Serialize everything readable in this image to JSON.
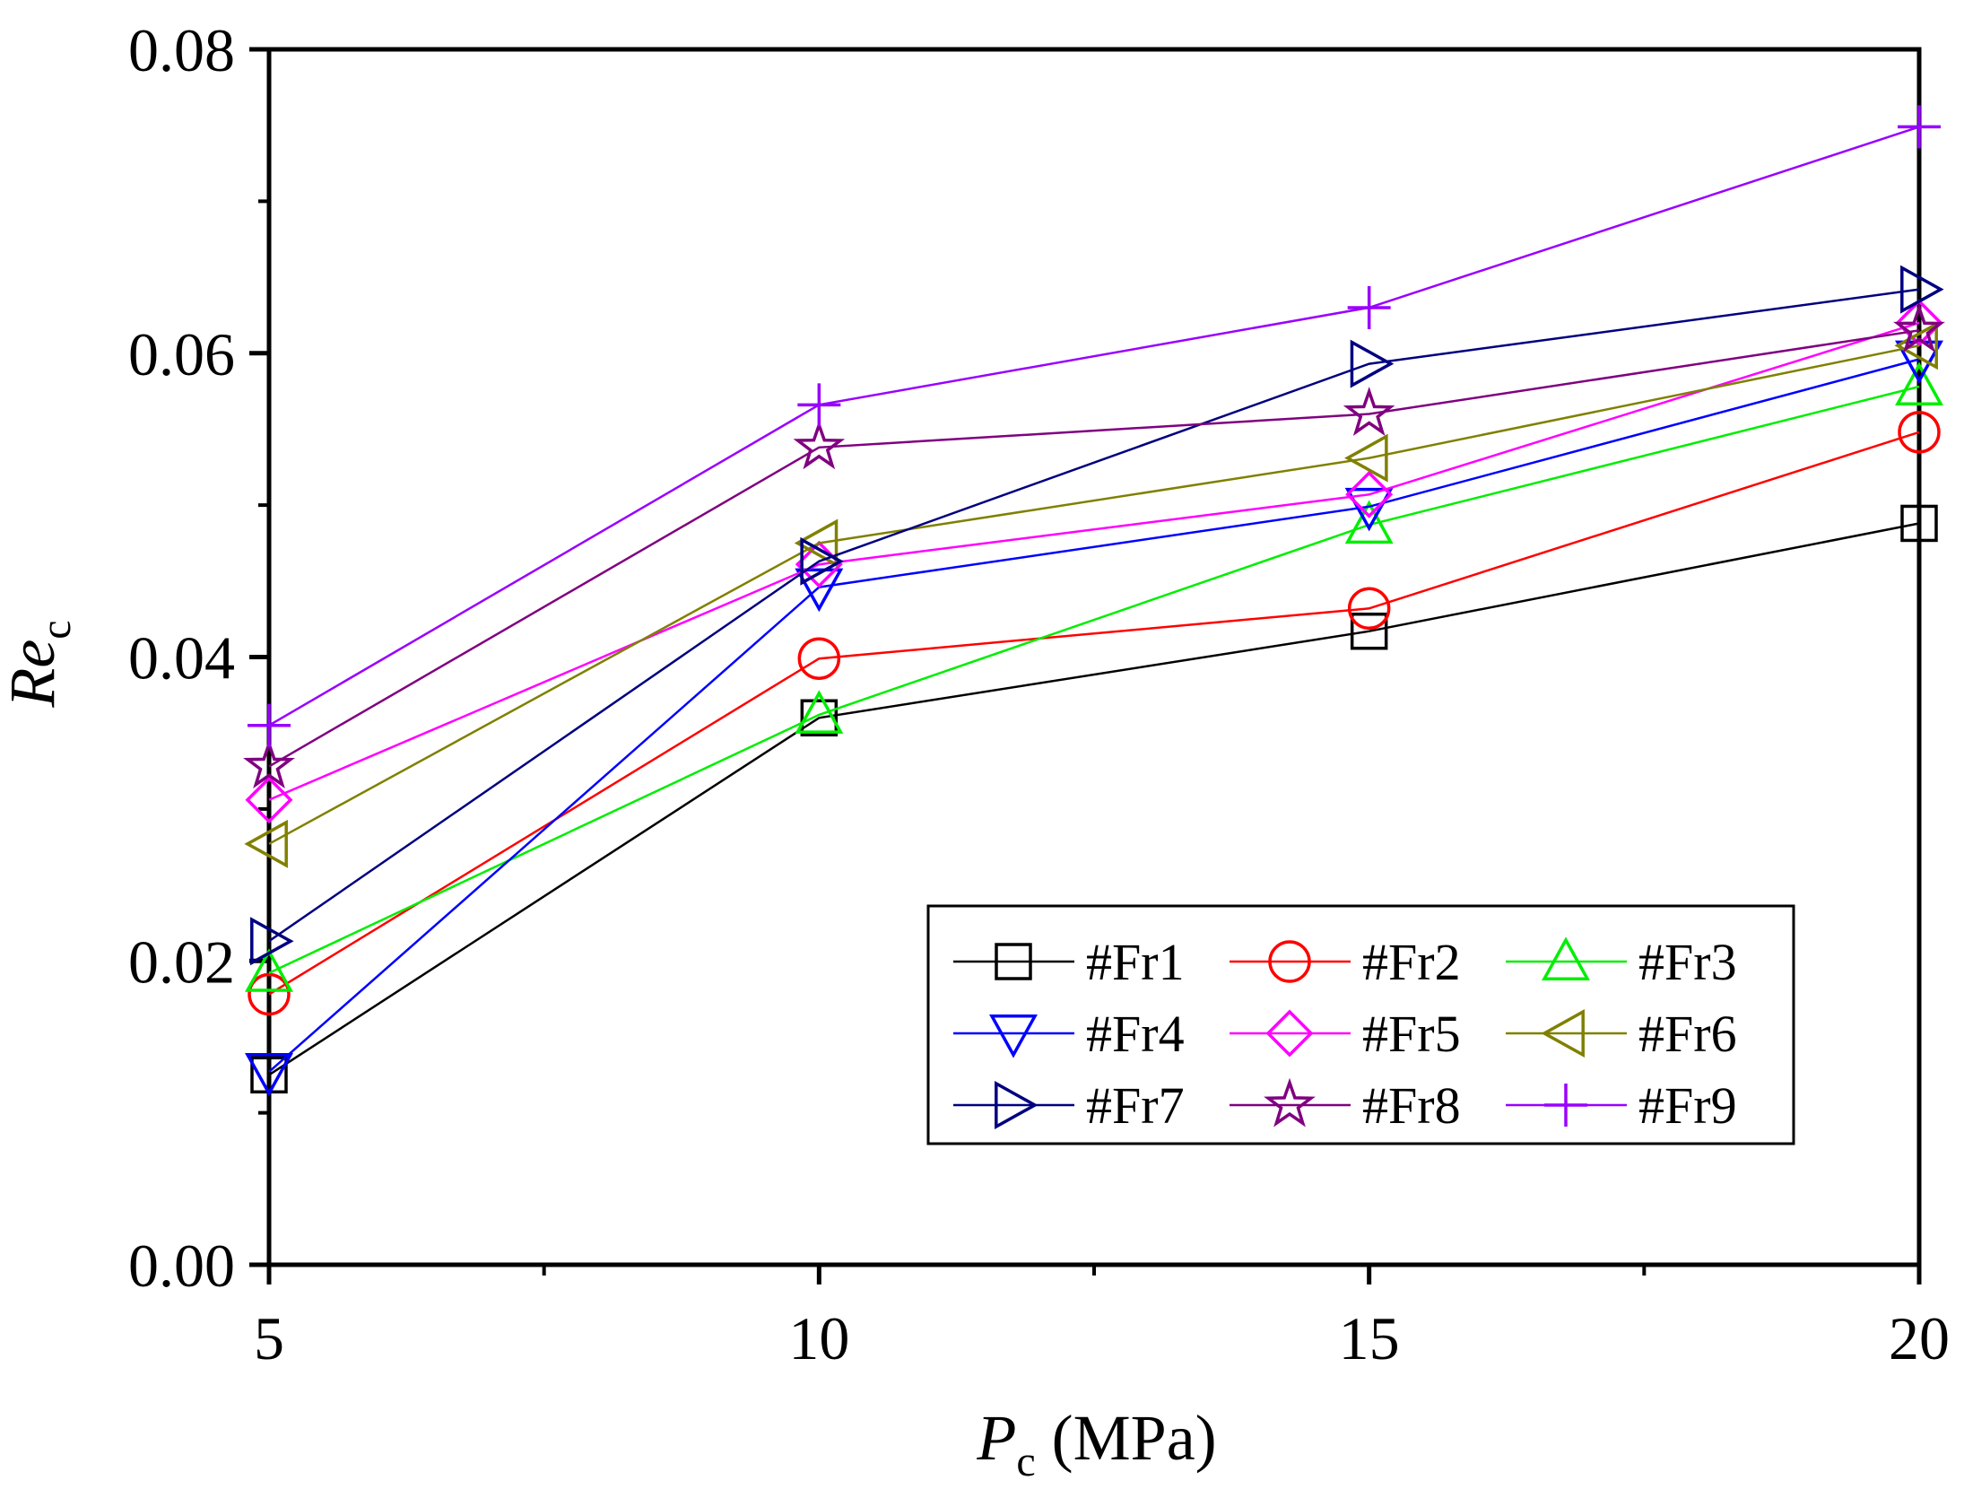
{
  "chart_data": {
    "type": "line",
    "title": "",
    "xlabel": {
      "main": "P",
      "sub": "c",
      "unit": " (MPa)"
    },
    "ylabel": {
      "main": "Re",
      "sub": "c"
    },
    "x": [
      5,
      10,
      15,
      20
    ],
    "xlim": [
      5,
      20
    ],
    "ylim": [
      0,
      0.08
    ],
    "xticks": [
      5,
      10,
      15,
      20
    ],
    "xtick_labels": [
      "5",
      "10",
      "15",
      "20"
    ],
    "yticks": [
      0,
      0.02,
      0.04,
      0.06,
      0.08
    ],
    "ytick_labels": [
      "0.00",
      "0.02",
      "0.04",
      "0.06",
      "0.08"
    ],
    "grid": false,
    "legend_position": "bottom-right",
    "series": [
      {
        "name": "#Fr1",
        "color": "#000000",
        "marker": "square",
        "values": [
          0.0125,
          0.036,
          0.0417,
          0.0488
        ]
      },
      {
        "name": "#Fr2",
        "color": "#ff0000",
        "marker": "circle",
        "values": [
          0.0178,
          0.0399,
          0.0432,
          0.0548
        ]
      },
      {
        "name": "#Fr3",
        "color": "#00ee00",
        "marker": "triangle-up",
        "values": [
          0.0192,
          0.0362,
          0.0487,
          0.0578
        ]
      },
      {
        "name": "#Fr4",
        "color": "#0000ff",
        "marker": "triangle-down",
        "values": [
          0.0127,
          0.0446,
          0.0499,
          0.0596
        ]
      },
      {
        "name": "#Fr5",
        "color": "#ff00ff",
        "marker": "diamond",
        "values": [
          0.0306,
          0.0461,
          0.0507,
          0.062
        ]
      },
      {
        "name": "#Fr6",
        "color": "#808000",
        "marker": "triangle-left",
        "values": [
          0.0277,
          0.0475,
          0.0531,
          0.0605
        ]
      },
      {
        "name": "#Fr7",
        "color": "#000080",
        "marker": "triangle-right",
        "values": [
          0.0213,
          0.0463,
          0.0593,
          0.0642
        ]
      },
      {
        "name": "#Fr8",
        "color": "#800080",
        "marker": "star",
        "values": [
          0.0328,
          0.0538,
          0.056,
          0.0615
        ]
      },
      {
        "name": "#Fr9",
        "color": "#9900ff",
        "marker": "plus",
        "values": [
          0.0355,
          0.0566,
          0.063,
          0.0749
        ]
      }
    ]
  }
}
